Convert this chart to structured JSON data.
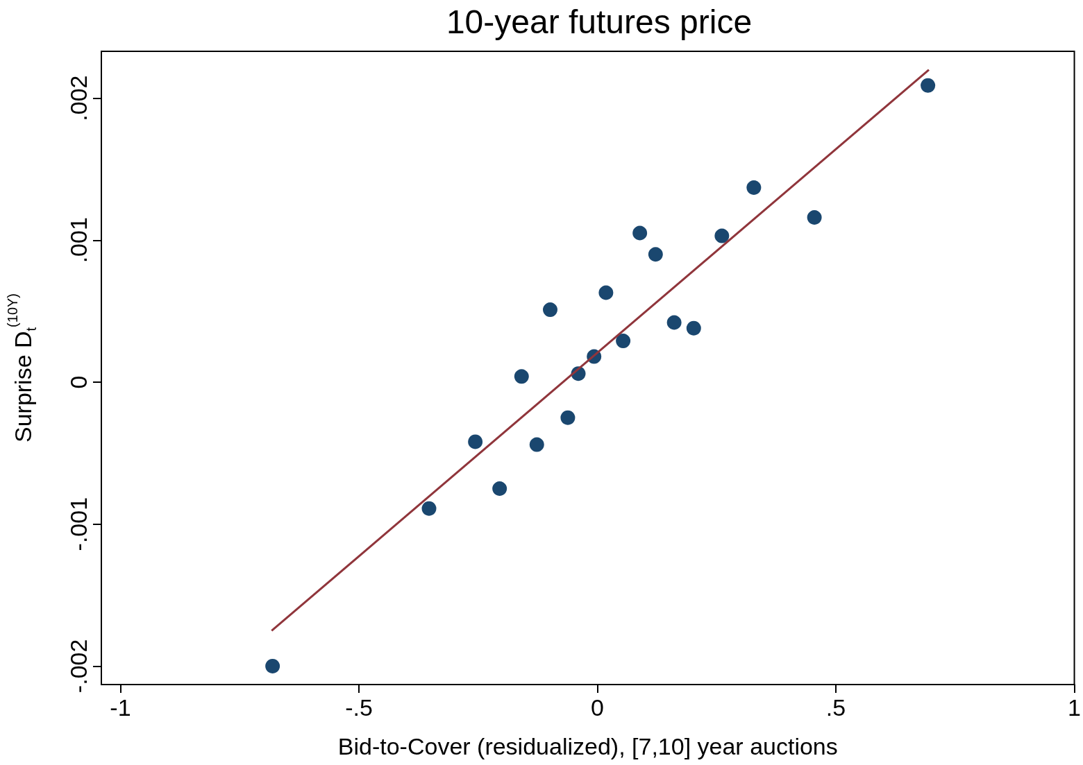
{
  "chart_data": {
    "type": "scatter",
    "title": "10-year futures price",
    "xlabel": "Bid-to-Cover (residualized), [7,10] year auctions",
    "ylabel": "Surprise D$_{t}$$^{(10Y)}$",
    "grid": false,
    "marker": "circle",
    "xlim": [
      -1.04,
      1.0
    ],
    "xticks": [
      {
        "value": -1,
        "label": "-1"
      },
      {
        "value": -0.5,
        "label": "-.5"
      },
      {
        "value": 0,
        "label": "0"
      },
      {
        "value": 0.5,
        "label": ".5"
      },
      {
        "value": 1,
        "label": "1"
      }
    ],
    "ylim": [
      -0.00213,
      0.00233
    ],
    "yticks": [
      {
        "value": -0.002,
        "label": "-.002"
      },
      {
        "value": -0.001,
        "label": "-.001"
      },
      {
        "value": 0,
        "label": "0"
      },
      {
        "value": 0.001,
        "label": ".001"
      },
      {
        "value": 0.002,
        "label": ".002"
      }
    ],
    "series": [
      {
        "type": "scatter",
        "color": "#1a476f",
        "x": [
          -0.681,
          -0.353,
          -0.256,
          -0.205,
          -0.159,
          -0.127,
          -0.099,
          -0.062,
          -0.04,
          -0.007,
          0.018,
          0.054,
          0.089,
          0.122,
          0.161,
          0.202,
          0.261,
          0.328,
          0.455,
          0.693
        ],
        "values": [
          -0.002,
          -0.00089,
          -0.00042,
          -0.00075,
          4e-05,
          -0.00044,
          0.00051,
          -0.00025,
          6e-05,
          0.00018,
          0.00063,
          0.00029,
          0.00105,
          0.0009,
          0.00042,
          0.00038,
          0.00103,
          0.00137,
          0.00116,
          0.00209
        ]
      },
      {
        "type": "line",
        "color": "#90353b",
        "marker": "none",
        "line_style": "solid",
        "x": [
          -0.683,
          0.695
        ],
        "values": [
          -0.001751,
          0.0022
        ]
      }
    ]
  }
}
